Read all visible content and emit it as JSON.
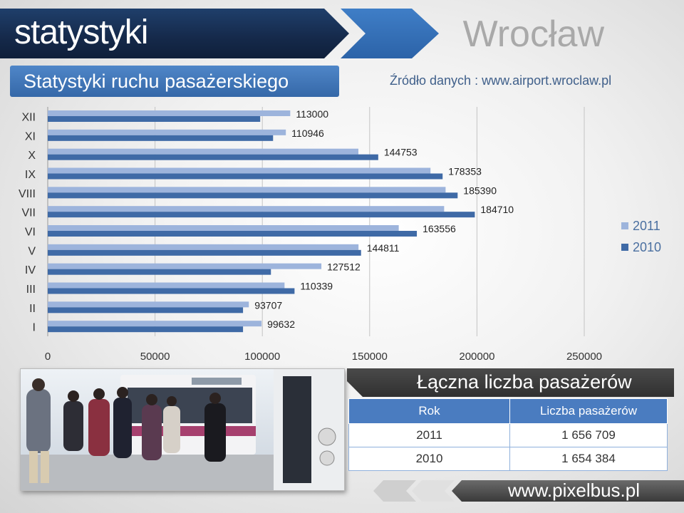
{
  "header": {
    "title": "statystyki",
    "city": "Wrocław"
  },
  "subtitle": "Statystyki ruchu pasażerskiego",
  "source": "Źródło danych : www.airport.wroclaw.pl",
  "chart_data": {
    "type": "bar",
    "orientation": "horizontal",
    "categories": [
      "I",
      "II",
      "III",
      "IV",
      "V",
      "VI",
      "VII",
      "VIII",
      "IX",
      "X",
      "XI",
      "XII"
    ],
    "series": [
      {
        "name": "2011",
        "color": "#9db4dc",
        "values": [
          99632,
          93707,
          110339,
          127512,
          144811,
          163556,
          184710,
          185390,
          178353,
          144753,
          110946,
          113000
        ]
      },
      {
        "name": "2010",
        "color": "#3f6aa6",
        "values": [
          91000,
          91000,
          115000,
          104000,
          146000,
          172000,
          199000,
          191000,
          184000,
          154000,
          105000,
          99000
        ]
      }
    ],
    "data_labels_series": "2011",
    "xlim": [
      0,
      250000
    ],
    "xticks": [
      0,
      50000,
      100000,
      150000,
      200000,
      250000
    ],
    "xgrid": true,
    "legend_position": "right"
  },
  "summary": {
    "title": "Łączna liczba pasażerów",
    "headers": [
      "Rok",
      "Liczba pasażerów"
    ],
    "rows": [
      {
        "year": "2011",
        "count": "1 656 709"
      },
      {
        "year": "2010",
        "count": "1 654 384"
      }
    ]
  },
  "footer": {
    "url": "www.pixelbus.pl"
  }
}
